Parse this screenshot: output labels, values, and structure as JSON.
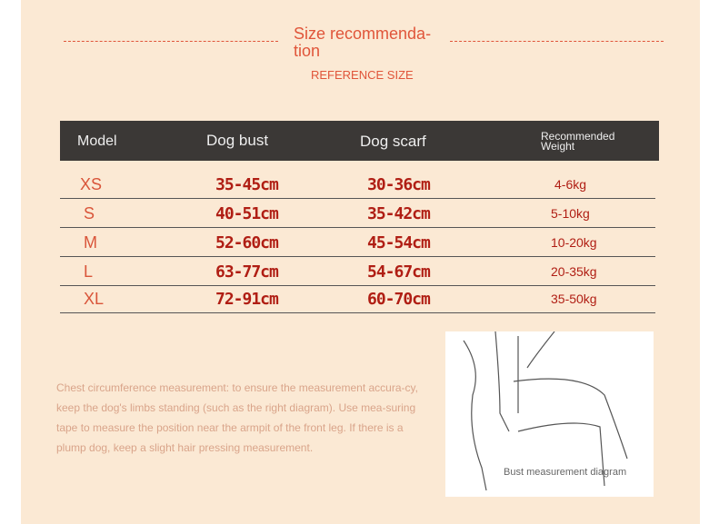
{
  "header": {
    "title": "Size recommenda- tion",
    "subtitle": "REFERENCE SIZE"
  },
  "table": {
    "columns": [
      "Model",
      "Dog bust",
      "Dog scarf",
      "Recommended Weight"
    ],
    "rows": [
      {
        "model": "XS",
        "bust": "35-45cm",
        "scarf": "30-36cm",
        "weight": "4-6kg"
      },
      {
        "model": "S",
        "bust": "40-51cm",
        "scarf": "35-42cm",
        "weight": "5-10kg"
      },
      {
        "model": "M",
        "bust": "52-60cm",
        "scarf": "45-54cm",
        "weight": "10-20kg"
      },
      {
        "model": "L",
        "bust": "63-77cm",
        "scarf": "54-67cm",
        "weight": "20-35kg"
      },
      {
        "model": "XL",
        "bust": "72-91cm",
        "scarf": "60-70cm",
        "weight": "35-50kg"
      }
    ]
  },
  "description": "Chest circumference measurement: to ensure the measurement accura-cy, keep the dog's limbs standing (such as the right diagram). Use mea-suring tape to measure the position near the armpit of the front leg. If there is a plump dog, keep a slight hair pressing measurement.",
  "diagram": {
    "caption": "Bust measurement diagram"
  },
  "colors": {
    "background": "#fbe9d4",
    "accent": "#e0553a",
    "header": "#3b3836",
    "value": "#b01e14"
  }
}
